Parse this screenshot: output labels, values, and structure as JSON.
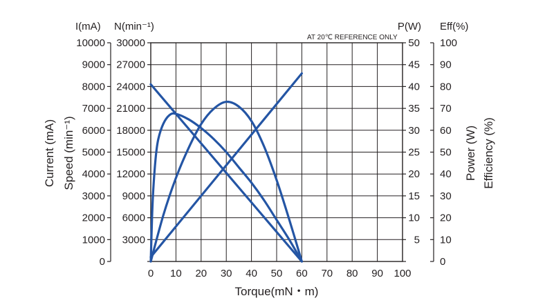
{
  "chart_data": {
    "type": "line",
    "title": "",
    "note": "AT 20℃ REFERENCE ONLY",
    "xlabel": "Torque(mN・m)",
    "xlim": [
      0,
      100
    ],
    "x_ticks": [
      "0",
      "10",
      "20",
      "30",
      "40",
      "50",
      "60",
      "70",
      "80",
      "90",
      "100"
    ],
    "axes": {
      "current": {
        "header": "I(mA)",
        "title": "Current (mA)",
        "lim": [
          0,
          10000
        ],
        "ticks": [
          "0",
          "1000",
          "2000",
          "3000",
          "4000",
          "5000",
          "6000",
          "7000",
          "8000",
          "9000",
          "10000"
        ]
      },
      "speed": {
        "header": "N(min⁻¹)",
        "title": "Speed (min⁻¹)",
        "lim": [
          0,
          30000
        ],
        "ticks": [
          "",
          "3000",
          "6000",
          "9000",
          "12000",
          "15000",
          "18000",
          "21000",
          "24000",
          "27000",
          "30000"
        ]
      },
      "power": {
        "header": "P(W)",
        "title": "Power (W)",
        "lim": [
          0,
          50
        ],
        "ticks": [
          "",
          "5",
          "10",
          "15",
          "20",
          "25",
          "30",
          "35",
          "40",
          "45",
          "50"
        ]
      },
      "efficiency": {
        "header": "Eff(%)",
        "title": "Efficiency (%)",
        "lim": [
          0,
          100
        ],
        "ticks": [
          "0",
          "10",
          "20",
          "30",
          "40",
          "50",
          "60",
          "70",
          "80",
          "90",
          "100"
        ]
      }
    },
    "grid": true,
    "series_color": "#2455a4",
    "series": [
      {
        "name": "Current",
        "axis": "current",
        "x": [
          0,
          60
        ],
        "y": [
          200,
          8600
        ]
      },
      {
        "name": "Speed",
        "axis": "speed",
        "x": [
          0,
          60
        ],
        "y": [
          24300,
          0
        ]
      },
      {
        "name": "Power",
        "axis": "power",
        "x": [
          0,
          5,
          10,
          15,
          20,
          25,
          30,
          35,
          40,
          45,
          50,
          55,
          60
        ],
        "y": [
          0,
          10.6,
          19.1,
          25.9,
          31.4,
          34.9,
          36.5,
          35.4,
          32.1,
          26.3,
          18.6,
          9.6,
          0
        ]
      },
      {
        "name": "Efficiency",
        "axis": "efficiency",
        "x": [
          0,
          0.5,
          1,
          2,
          3,
          5,
          7.5,
          10,
          15,
          20,
          25,
          30,
          35,
          40,
          45,
          50,
          55,
          60
        ],
        "y": [
          0,
          20,
          33,
          48,
          56,
          63,
          67,
          67.5,
          65,
          61,
          56,
          50,
          43,
          36,
          28,
          19,
          10,
          0
        ]
      }
    ]
  }
}
